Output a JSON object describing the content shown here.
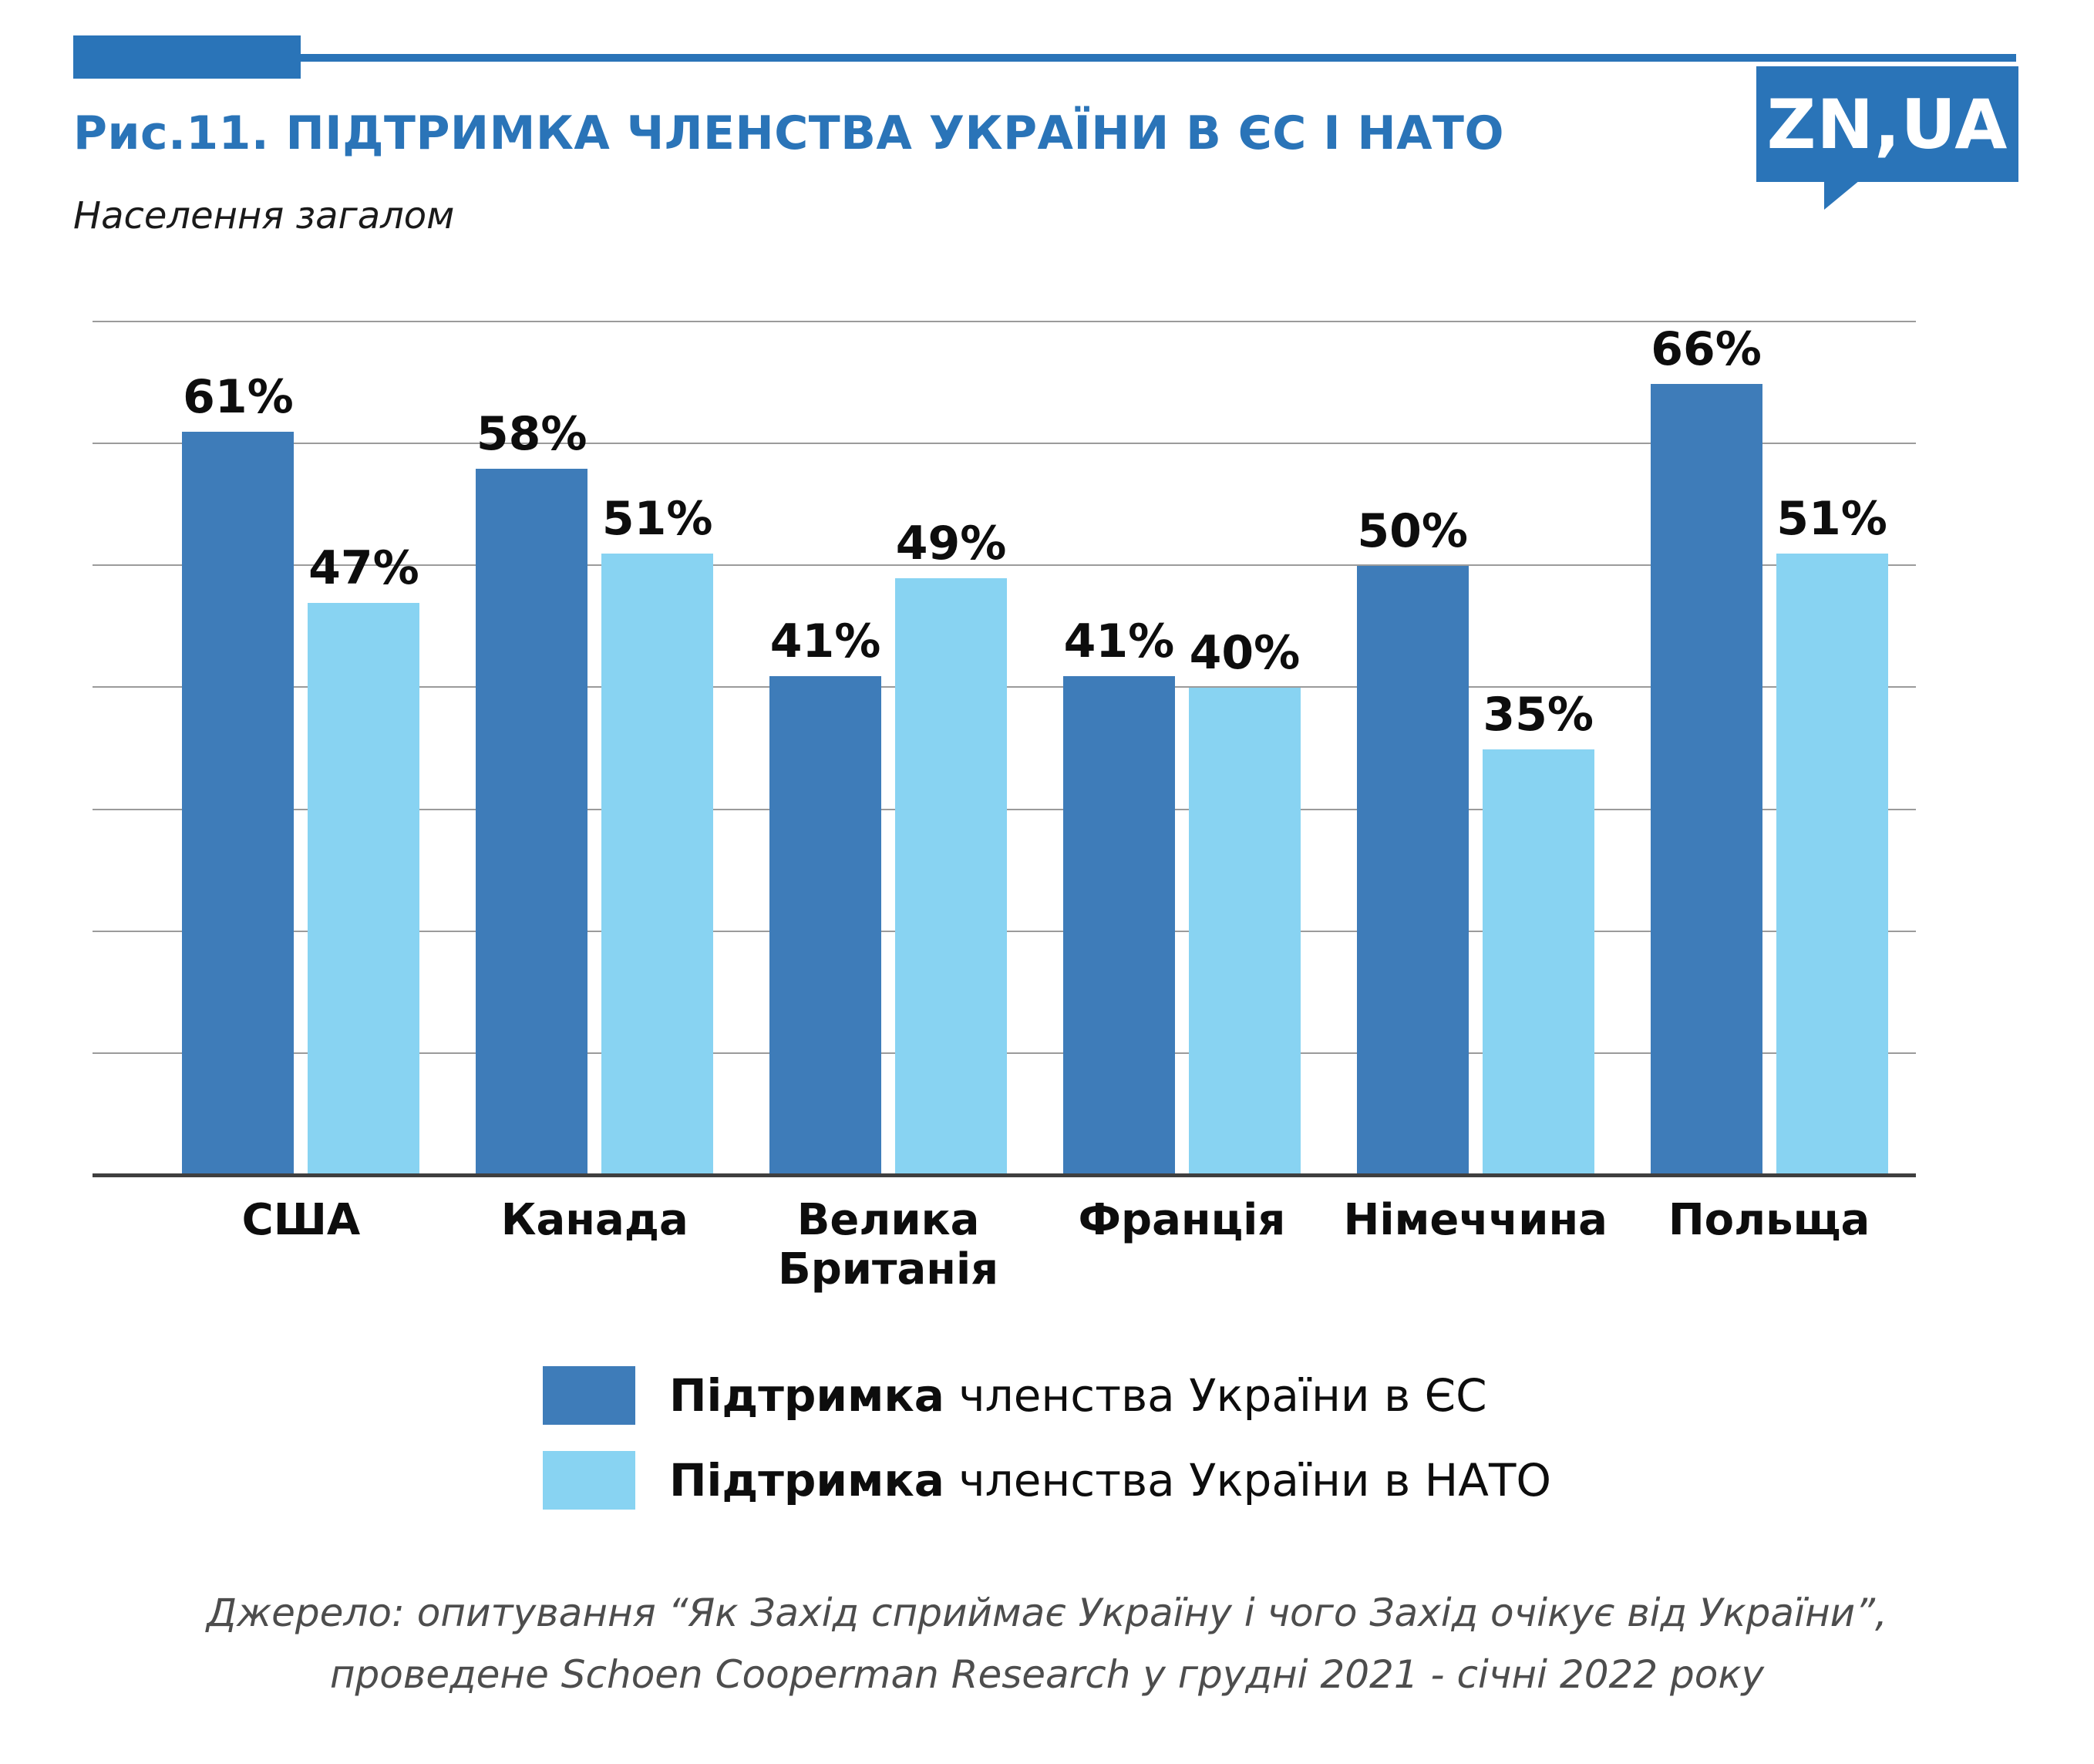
{
  "header": {
    "title": "Рис.11. ПІДТРИМКА ЧЛЕНСТВА УКРАЇНИ В ЄС І НАТО",
    "subtitle": "Населення загалом",
    "logo_text": "ZN,UA"
  },
  "colors": {
    "accent": "#2A74B8",
    "eu_bar": "#3E7CB9",
    "nato_bar": "#88D3F2",
    "source_text": "#4d4d4d",
    "gridline": "#9b9b9b"
  },
  "chart_data": {
    "type": "bar",
    "title": "Рис.11. ПІДТРИМКА ЧЛЕНСТВА УКРАЇНИ В ЄС І НАТО",
    "subtitle": "Населення загалом",
    "categories": [
      "США",
      "Канада",
      "Велика Британія",
      "Франція",
      "Німеччина",
      "Польща"
    ],
    "series": [
      {
        "name": "Підтримка членства України в ЄС",
        "values": [
          61,
          58,
          41,
          41,
          50,
          66
        ],
        "color": "#3E7CB9"
      },
      {
        "name": "Підтримка членства України в НАТО",
        "values": [
          47,
          51,
          49,
          40,
          35,
          51
        ],
        "color": "#88D3F2"
      }
    ],
    "value_label_format": "{v}%",
    "xlabel": "",
    "ylabel": "",
    "ylim": [
      0,
      70
    ],
    "gridlines": [
      10,
      20,
      30,
      40,
      50,
      60,
      70
    ],
    "grid": true,
    "legend_position": "bottom"
  },
  "legend": {
    "items": [
      {
        "bold": "Підтримка",
        "rest": " членства України в ЄС",
        "color": "#3E7CB9"
      },
      {
        "bold": "Підтримка",
        "rest": " членства України в НАТО",
        "color": "#88D3F2"
      }
    ]
  },
  "source": {
    "line1": "Джерело: опитування “Як Захід сприймає Україну і чого Захід очікує від України”,",
    "line2": "проведене Schoen Cooperman Research у грудні 2021 - січні 2022 року"
  }
}
